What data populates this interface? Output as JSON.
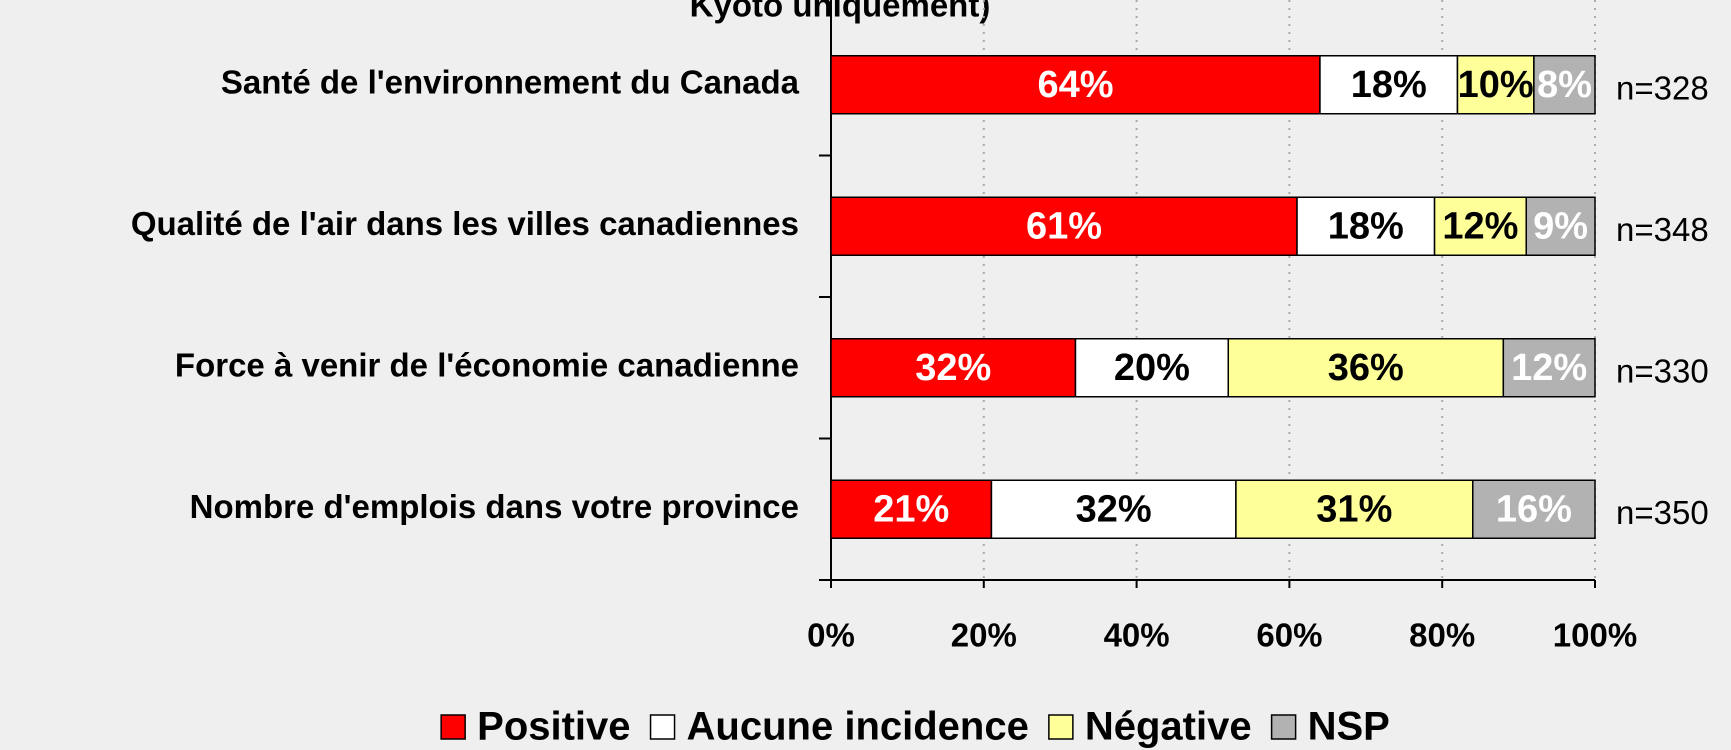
{
  "chart_data": {
    "type": "stacked_bar_horizontal",
    "title": "Kyoto uniquement)",
    "categories": [
      "Santé de l'environnement du Canada",
      "Qualité de l'air dans les villes canadiennes",
      "Force à venir de l'économie canadienne",
      "Nombre d'emplois dans votre province"
    ],
    "series": [
      {
        "name": "Positive",
        "color": "#ff0000",
        "label_color": "#ffffff",
        "values": [
          64,
          61,
          32,
          21
        ],
        "value_labels": [
          "64%",
          "61%",
          "32%",
          "21%"
        ]
      },
      {
        "name": "Aucune incidence",
        "color": "#ffffff",
        "label_color": "#000000",
        "values": [
          18,
          18,
          20,
          32
        ],
        "value_labels": [
          "18%",
          "18%",
          "20%",
          "32%"
        ]
      },
      {
        "name": "Négative",
        "color": "#ffff99",
        "label_color": "#000000",
        "values": [
          10,
          12,
          36,
          31
        ],
        "value_labels": [
          "10%",
          "12%",
          "36%",
          "31%"
        ]
      },
      {
        "name": "NSP",
        "color": "#b2b2b2",
        "label_color": "#ffffff",
        "values": [
          8,
          9,
          12,
          16
        ],
        "value_labels": [
          "8%",
          "9%",
          "12%",
          "16%"
        ]
      }
    ],
    "annotations": [
      "n=328",
      "n=348",
      "n=330",
      "n=350"
    ],
    "xlim": [
      0,
      100
    ],
    "xticks": [
      {
        "value": 0,
        "label": "0%"
      },
      {
        "value": 20,
        "label": "20%"
      },
      {
        "value": 40,
        "label": "40%"
      },
      {
        "value": 60,
        "label": "60%"
      },
      {
        "value": 80,
        "label": "80%"
      },
      {
        "value": 100,
        "label": "100%"
      }
    ],
    "grid": true,
    "legend": "bottom"
  }
}
